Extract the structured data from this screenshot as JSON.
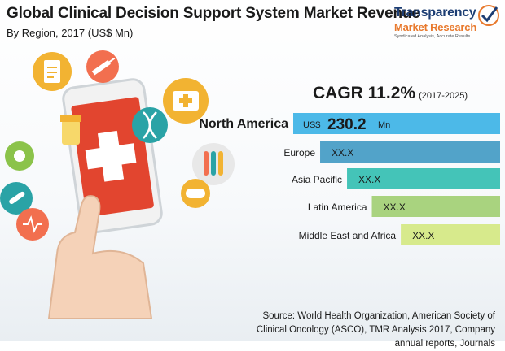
{
  "header": {
    "title": "Global Clinical Decision Support System Market Revenue",
    "subtitle": "By Region, 2017 (US$ Mn)"
  },
  "logo": {
    "line1": "Transparency",
    "line2": "Market Research",
    "tagline": "Syndicated Analysis, Accurate Results"
  },
  "cagr": {
    "label": "CAGR 11.2%",
    "period": "(2017-2025)"
  },
  "chart_data": {
    "type": "bar",
    "orientation": "horizontal",
    "categories": [
      "North America",
      "Europe",
      "Asia Pacific",
      "Latin America",
      "Middle East and Africa"
    ],
    "values": [
      230.2,
      null,
      null,
      null,
      null
    ],
    "data_labels": [
      "230.2",
      "XX.X",
      "XX.X",
      "XX.X",
      "XX.X"
    ],
    "highlight_prefix": "US$",
    "highlight_suffix": "Mn",
    "colors": [
      "#4cb9e8",
      "#52a3c9",
      "#44c4b8",
      "#a9d37f",
      "#d7ea8c"
    ],
    "relative_lengths": [
      1.0,
      0.87,
      0.74,
      0.62,
      0.48
    ]
  },
  "footer": {
    "source_line1": "Source: World Health Organization, American Society of",
    "source_line2": "Clinical Oncology (ASCO), TMR Analysis 2017, Company annual reports, Journals"
  },
  "icons": [
    "clipboard-icon",
    "syringe-icon",
    "medical-kit-icon",
    "pill-bottle-icon",
    "dna-icon",
    "test-tubes-icon",
    "thermometer-icon",
    "heart-monitor-icon",
    "capsule-icon",
    "virus-icon",
    "medical-cross-icon",
    "hand-pointer-icon",
    "smartphone-icon"
  ]
}
